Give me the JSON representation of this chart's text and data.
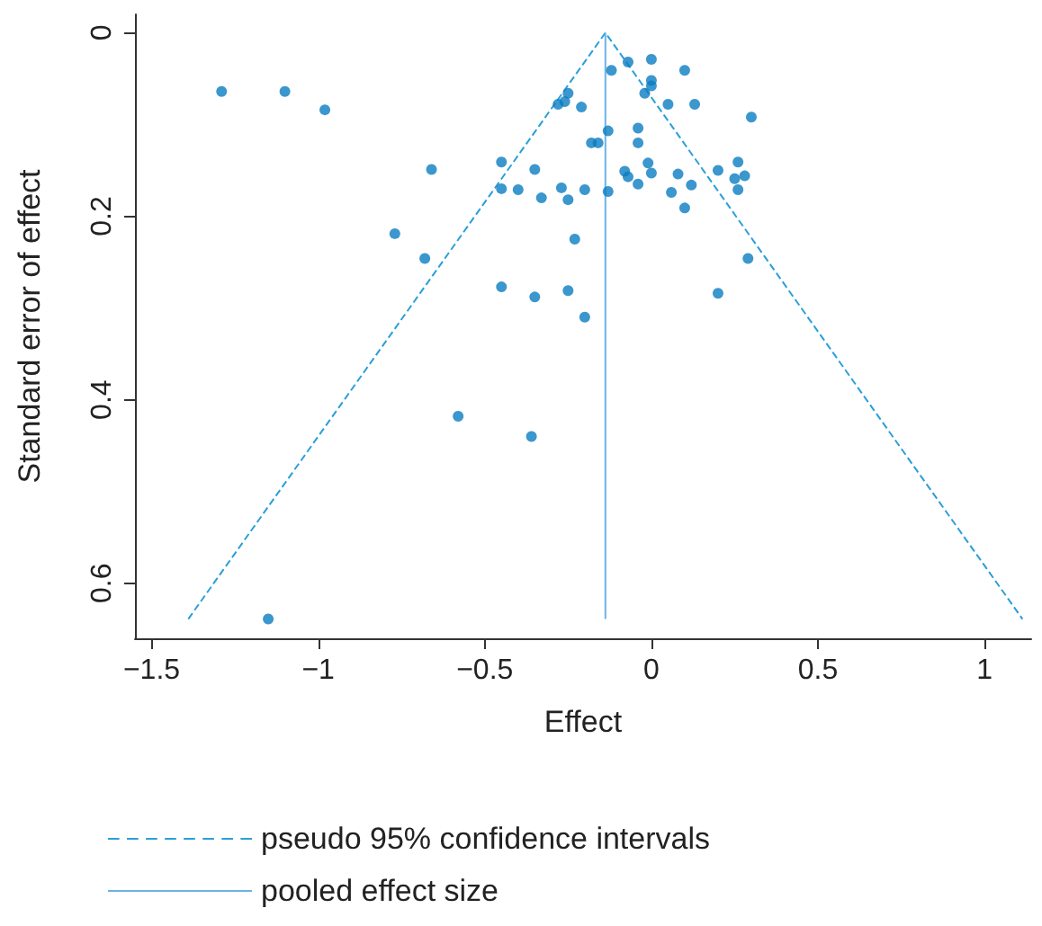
{
  "chart_data": {
    "type": "scatter",
    "xlabel": "Effect",
    "ylabel": "Standard error of effect",
    "xlim": [
      -1.55,
      1.14
    ],
    "xticks": [
      {
        "value": -1.5,
        "label": "−1.5"
      },
      {
        "value": -1,
        "label": "−1"
      },
      {
        "value": -0.5,
        "label": "−0.5"
      },
      0,
      0.5,
      1
    ],
    "ylim": [
      0.66,
      -0.02
    ],
    "yticks": [
      0,
      0.2,
      0.4,
      0.6
    ],
    "grid": false,
    "legend": "bottom left",
    "series": [
      {
        "type": "scatter",
        "marker": "circle",
        "color": "#0a7dc1",
        "x": [
          -1.29,
          -1.1,
          -0.98,
          -0.12,
          -0.07,
          0.0,
          0.1,
          0.0,
          0.0,
          -0.02,
          0.05,
          0.13,
          0.3,
          -0.25,
          -0.28,
          -0.26,
          -0.21,
          -0.13,
          -0.04,
          -0.18,
          -0.16,
          -0.04,
          -0.66,
          -0.45,
          -0.35,
          -0.01,
          -0.08,
          -0.07,
          0.0,
          -0.04,
          0.08,
          0.2,
          0.26,
          0.25,
          0.28,
          0.26,
          0.12,
          0.06,
          0.1,
          -0.45,
          -0.4,
          -0.33,
          -0.27,
          -0.25,
          -0.2,
          -0.13,
          -0.77,
          -0.68,
          -0.23,
          0.29,
          -0.45,
          -0.35,
          -0.25,
          -0.2,
          0.2,
          -0.58,
          -0.36,
          -1.15
        ],
        "values": [
          0.064,
          0.064,
          0.084,
          0.041,
          0.032,
          0.029,
          0.041,
          0.052,
          0.058,
          0.066,
          0.078,
          0.078,
          0.092,
          0.066,
          0.078,
          0.075,
          0.081,
          0.107,
          0.104,
          0.12,
          0.12,
          0.12,
          0.149,
          0.141,
          0.149,
          0.142,
          0.151,
          0.157,
          0.153,
          0.165,
          0.154,
          0.15,
          0.141,
          0.159,
          0.156,
          0.171,
          0.166,
          0.174,
          0.191,
          0.17,
          0.171,
          0.18,
          0.169,
          0.182,
          0.171,
          0.173,
          0.219,
          0.246,
          0.225,
          0.246,
          0.277,
          0.288,
          0.281,
          0.31,
          0.284,
          0.418,
          0.44,
          0.639
        ]
      },
      {
        "type": "line",
        "name": "pseudo 95% confidence intervals",
        "marker": "none",
        "line_style": "dashed",
        "color": "#2a9fd8",
        "x": [
          -1.39,
          -0.138,
          1.114
        ],
        "values": [
          0.639,
          0,
          0.639
        ]
      },
      {
        "type": "line",
        "name": "pooled effect size",
        "marker": "none",
        "line_style": "solid",
        "color": "#6ab4e6",
        "x": [
          -0.138,
          -0.138
        ],
        "values": [
          0,
          0.639
        ]
      }
    ]
  }
}
